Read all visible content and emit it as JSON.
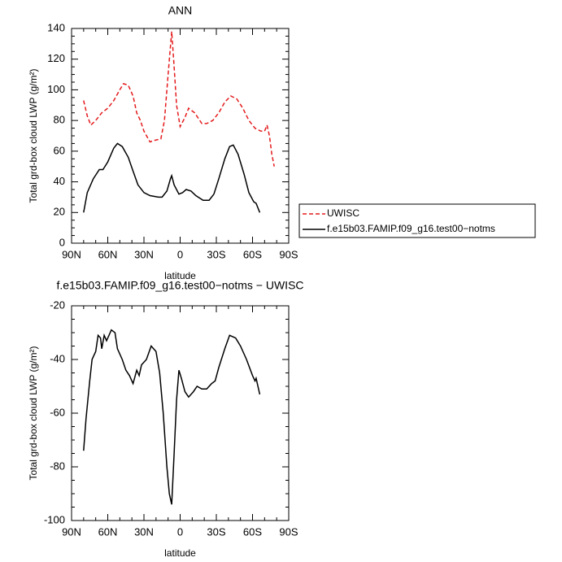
{
  "chart_data": [
    {
      "type": "line",
      "title": "ANN",
      "x_label": "latitude",
      "y_label": "Total grd-box cloud LWP (g/m²)",
      "xlim": [
        90,
        -90
      ],
      "xticks": [
        {
          "value": 90,
          "label": "90N"
        },
        {
          "value": 60,
          "label": "60N"
        },
        {
          "value": 30,
          "label": "30N"
        },
        0,
        {
          "value": -30,
          "label": "30S"
        },
        {
          "value": -60,
          "label": "60S"
        },
        {
          "value": -90,
          "label": "90S"
        }
      ],
      "ylim": [
        0,
        140
      ],
      "yticks": [
        0,
        20,
        40,
        60,
        80,
        100,
        120,
        140
      ],
      "legend": "right",
      "series": [
        {
          "name": "UWISC",
          "color": "#e41a1c",
          "line_style": "dashed",
          "x": [
            80,
            77,
            74,
            70,
            65,
            60,
            55,
            50,
            47,
            43,
            39,
            36,
            33,
            30,
            25,
            21.5,
            16,
            13,
            10,
            7,
            5,
            3,
            0,
            -4,
            -7,
            -12,
            -18,
            -22,
            -27,
            -32,
            -37,
            -42,
            -47,
            -52,
            -57,
            -62,
            -67,
            -70,
            -72,
            -74,
            -76,
            -78
          ],
          "values": [
            93,
            83,
            77,
            80,
            85,
            88,
            93,
            100,
            104,
            103,
            96,
            85,
            80,
            73,
            66,
            67,
            68,
            80,
            110,
            138,
            115,
            90,
            76,
            82,
            88,
            85,
            78,
            78,
            80,
            85,
            92,
            96,
            94,
            88,
            80,
            75,
            73,
            73,
            77,
            70,
            58,
            50
          ]
        },
        {
          "name": "f.e15b03.FAMIP.f09_g16.test00−notms",
          "color": "#000000",
          "line_style": "solid",
          "x": [
            80,
            77,
            72,
            67,
            64,
            60,
            55,
            52,
            48,
            43,
            39,
            35,
            30,
            25,
            18,
            15,
            11,
            8,
            7,
            5,
            1,
            -2,
            -5,
            -9,
            -13,
            -19,
            -24,
            -28,
            -32,
            -37,
            -41,
            -44,
            -48,
            -53,
            -57,
            -61,
            -63,
            -66
          ],
          "values": [
            20,
            33,
            42,
            48,
            48,
            53,
            62,
            65,
            63,
            56,
            47,
            38,
            33,
            31,
            30,
            30,
            34,
            42,
            44,
            38,
            32,
            33,
            35,
            34,
            31,
            28,
            28,
            32,
            42,
            55,
            63,
            64,
            58,
            45,
            33,
            27,
            26,
            20
          ]
        }
      ]
    },
    {
      "type": "line",
      "title": "f.e15b03.FAMIP.f09_g16.test00−notms − UWISC",
      "x_label": "latitude",
      "y_label": "Total grd-box cloud LWP (g/m²)",
      "xlim": [
        90,
        -90
      ],
      "xticks": [
        {
          "value": 90,
          "label": "90N"
        },
        {
          "value": 60,
          "label": "60N"
        },
        {
          "value": 30,
          "label": "30N"
        },
        0,
        {
          "value": -30,
          "label": "30S"
        },
        {
          "value": -60,
          "label": "60S"
        },
        {
          "value": -90,
          "label": "90S"
        }
      ],
      "ylim": [
        -100,
        -20
      ],
      "yticks": [
        -100,
        -80,
        -60,
        -40,
        -20
      ],
      "series": [
        {
          "color": "#000000",
          "line_style": "solid",
          "x": [
            80,
            78,
            75,
            73,
            70,
            68,
            66,
            65,
            63,
            61,
            59,
            57,
            54,
            52,
            48,
            45,
            42,
            39,
            36,
            34,
            32,
            28,
            24,
            20,
            17,
            14,
            11,
            9,
            7,
            5,
            3,
            1,
            -1,
            -4,
            -7,
            -11,
            -14,
            -18,
            -22,
            -26,
            -29,
            -32,
            -37,
            -41,
            -46,
            -50,
            -55,
            -60,
            -62,
            -63,
            -66
          ],
          "values": [
            -74,
            -62,
            -48,
            -40,
            -37,
            -31,
            -32,
            -36,
            -31,
            -33,
            -31,
            -29,
            -30,
            -36,
            -40,
            -44,
            -46,
            -49,
            -44,
            -46,
            -42,
            -40,
            -35,
            -37,
            -45,
            -60,
            -80,
            -90,
            -94,
            -75,
            -55,
            -44,
            -47,
            -52,
            -54,
            -52,
            -50,
            -51,
            -51,
            -49,
            -48,
            -43,
            -36,
            -31,
            -32,
            -35,
            -40,
            -46,
            -48,
            -47,
            -53
          ]
        }
      ]
    }
  ]
}
